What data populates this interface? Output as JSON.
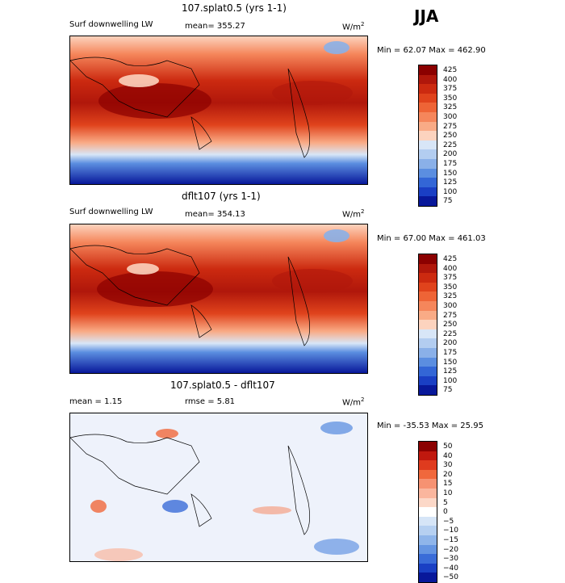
{
  "season": "JJA",
  "panels": [
    {
      "title": "107.splat0.5 (yrs 1-1)",
      "variable": "Surf downwelling LW",
      "stat": "mean= 355.27",
      "units": "W/m",
      "units_exp": "2",
      "minmax": "Min =  62.07 Max = 462.90"
    },
    {
      "title": "dflt107 (yrs 1-1)",
      "variable": "Surf downwelling LW",
      "stat": "mean= 354.13",
      "units": "W/m",
      "units_exp": "2",
      "minmax": "Min =  67.00 Max = 461.03"
    },
    {
      "title": "107.splat0.5 - dflt107",
      "variable": "mean =    1.15",
      "stat": "rmse =   5.81",
      "units": "W/m",
      "units_exp": "2",
      "minmax": "Min = -35.53 Max =  25.95"
    }
  ],
  "chart_data": [
    {
      "type": "heatmap",
      "title": "107.splat0.5 (yrs 1-1)",
      "variable": "Surf downwelling LW",
      "mean": 355.27,
      "min": 62.07,
      "max": 462.9,
      "colorbar_levels": [
        "425",
        "400",
        "375",
        "350",
        "325",
        "300",
        "275",
        "250",
        "225",
        "200",
        "175",
        "150",
        "125",
        "100",
        "75"
      ],
      "colorbar_colors": [
        "#8b0000",
        "#b0170b",
        "#cc2a10",
        "#e0431c",
        "#ee6436",
        "#f5865b",
        "#f9ab86",
        "#fcd3be",
        "#d8e6f7",
        "#b3cdf0",
        "#8ab0e8",
        "#5b8ee0",
        "#3366d6",
        "#1a3fc4",
        "#08189a"
      ]
    },
    {
      "type": "heatmap",
      "title": "dflt107 (yrs 1-1)",
      "variable": "Surf downwelling LW",
      "mean": 354.13,
      "min": 67.0,
      "max": 461.03,
      "colorbar_levels": [
        "425",
        "400",
        "375",
        "350",
        "325",
        "300",
        "275",
        "250",
        "225",
        "200",
        "175",
        "150",
        "125",
        "100",
        "75"
      ],
      "colorbar_colors": [
        "#8b0000",
        "#b0170b",
        "#cc2a10",
        "#e0431c",
        "#ee6436",
        "#f5865b",
        "#f9ab86",
        "#fcd3be",
        "#d8e6f7",
        "#b3cdf0",
        "#8ab0e8",
        "#5b8ee0",
        "#3366d6",
        "#1a3fc4",
        "#08189a"
      ]
    },
    {
      "type": "heatmap",
      "title": "107.splat0.5 - dflt107",
      "mean": 1.15,
      "rmse": 5.81,
      "min": -35.53,
      "max": 25.95,
      "colorbar_levels": [
        "50",
        "40",
        "30",
        "20",
        "15",
        "10",
        "5",
        "0",
        "−5",
        "−10",
        "−15",
        "−20",
        "−30",
        "−40",
        "−50"
      ],
      "colorbar_colors": [
        "#8b0000",
        "#c0180e",
        "#df3b1e",
        "#f0683c",
        "#f69272",
        "#fab69e",
        "#fcd8c8",
        "#ffffff",
        "#d6e5f7",
        "#b6d0f1",
        "#8fb5ea",
        "#6595e2",
        "#3a6cd8",
        "#1a40c4",
        "#08189a"
      ]
    }
  ]
}
